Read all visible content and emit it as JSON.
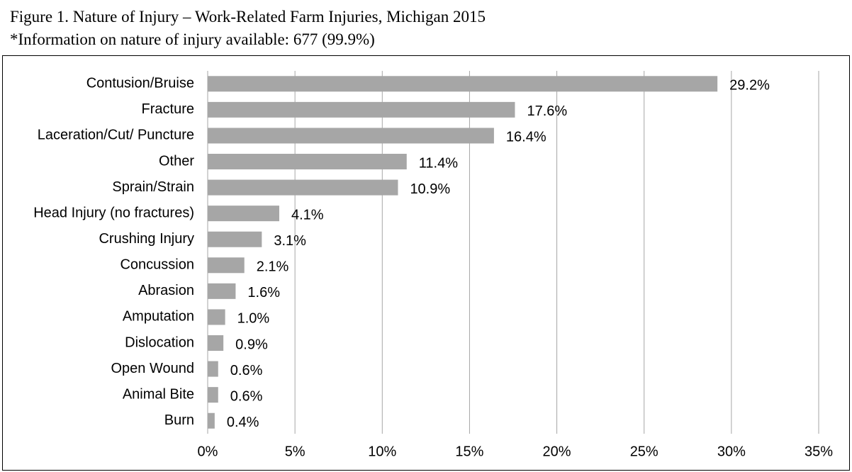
{
  "chart_data": {
    "type": "bar",
    "orientation": "horizontal",
    "title": "Figure 1. Nature of Injury – Work-Related Farm Injuries, Michigan 2015",
    "subtitle": "*Information on nature of injury available: 677 (99.9%)",
    "categories": [
      "Contusion/Bruise",
      "Fracture",
      "Laceration/Cut/ Puncture",
      "Other",
      "Sprain/Strain",
      "Head Injury (no fractures)",
      "Crushing Injury",
      "Concussion",
      "Abrasion",
      "Amputation",
      "Dislocation",
      "Open Wound",
      "Animal Bite",
      "Burn"
    ],
    "values": [
      29.2,
      17.6,
      16.4,
      11.4,
      10.9,
      4.1,
      3.1,
      2.1,
      1.6,
      1.0,
      0.9,
      0.6,
      0.6,
      0.4
    ],
    "value_labels": [
      "29.2%",
      "17.6%",
      "16.4%",
      "11.4%",
      "10.9%",
      "4.1%",
      "3.1%",
      "2.1%",
      "1.6%",
      "1.0%",
      "0.9%",
      "0.6%",
      "0.6%",
      "0.4%"
    ],
    "color": "#a6a6a6",
    "xlim": [
      0,
      35
    ],
    "xticks": [
      {
        "value": 0,
        "label": "0%"
      },
      {
        "value": 5,
        "label": "5%"
      },
      {
        "value": 10,
        "label": "10%"
      },
      {
        "value": 15,
        "label": "15%"
      },
      {
        "value": 20,
        "label": "20%"
      },
      {
        "value": 25,
        "label": "25%"
      },
      {
        "value": 30,
        "label": "30%"
      },
      {
        "value": 35,
        "label": "35%"
      }
    ],
    "grid": true
  }
}
